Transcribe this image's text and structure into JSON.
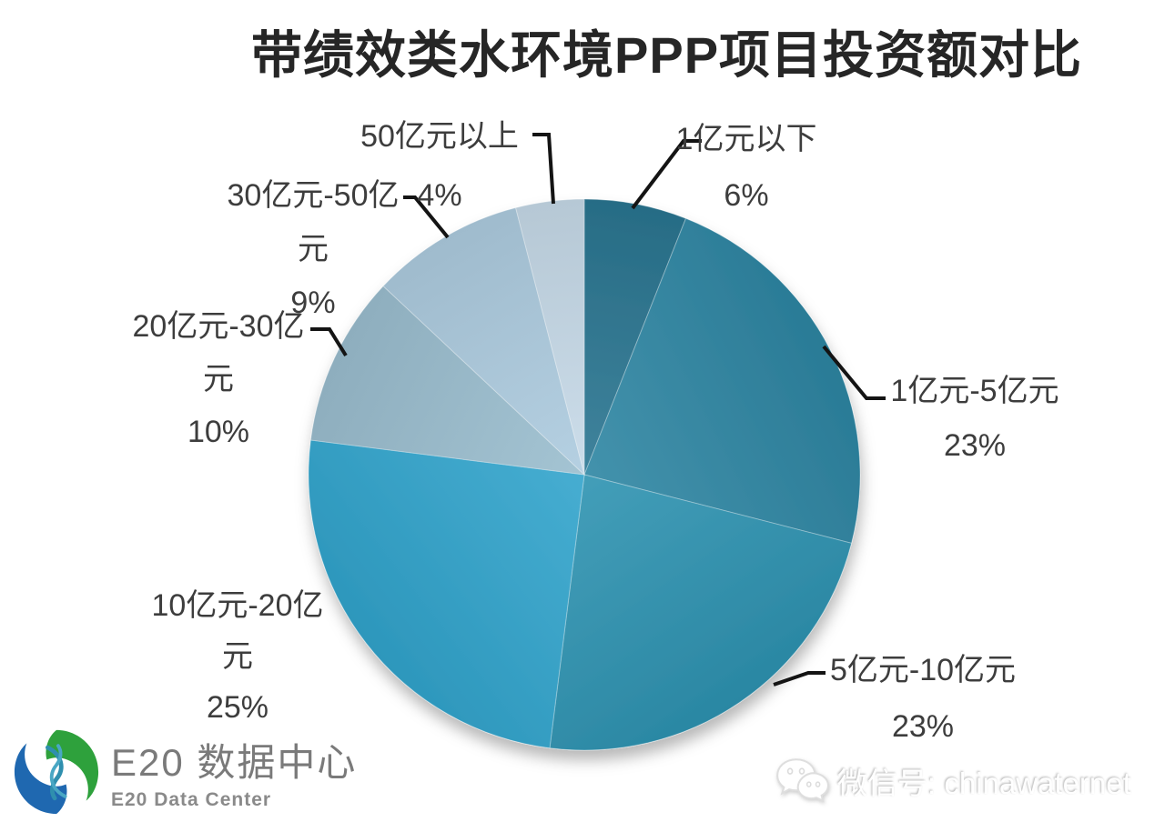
{
  "chart_data": {
    "type": "pie",
    "title": "带绩效类水环境PPP项目投资额对比",
    "value_unit": "percent",
    "direction": "clockwise",
    "start_angle_deg": 0,
    "legend": "none (leader-line callouts around pie)",
    "slices": [
      {
        "label": "1亿元以下",
        "value": 6,
        "pct_text": "6%",
        "color": "#2a7591",
        "callout_lines": [
          "1亿元以下",
          "6%"
        ]
      },
      {
        "label": "1亿元-5亿元",
        "value": 23,
        "pct_text": "23%",
        "color": "#2e86a3",
        "callout_lines": [
          "1亿元-5亿元",
          "23%"
        ]
      },
      {
        "label": "5亿元-10亿元",
        "value": 23,
        "pct_text": "23%",
        "color": "#2e93b1",
        "callout_lines": [
          "5亿元-10亿元",
          "23%"
        ]
      },
      {
        "label": "10亿元-20亿元",
        "value": 25,
        "pct_text": "25%",
        "color": "#31a4cc",
        "callout_lines": [
          "10亿元-20亿",
          "元",
          "25%"
        ]
      },
      {
        "label": "20亿元-30亿元",
        "value": 10,
        "pct_text": "10%",
        "color": "#9abdce",
        "callout_lines": [
          "20亿元-30亿",
          "元",
          "10%"
        ]
      },
      {
        "label": "30亿元-50亿元",
        "value": 9,
        "pct_text": "9%",
        "color": "#adcbdf",
        "callout_lines": [
          "30亿元-50亿",
          "元",
          "9%"
        ]
      },
      {
        "label": "50亿元以上",
        "value": 4,
        "pct_text": "4%",
        "color": "#c6d9e8",
        "callout_lines": [
          "50亿元以上",
          "4%"
        ]
      }
    ]
  },
  "footer": {
    "logo_title": "E20 数据中心",
    "logo_subtitle": "E20 Data Center",
    "wechat_label": "微信号: chinawaternet"
  }
}
